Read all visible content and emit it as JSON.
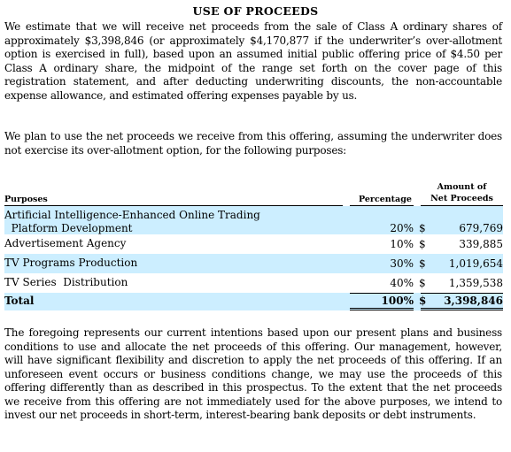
{
  "title": "USE OF PROCEEDS",
  "paragraph1": "We estimate that we will receive net proceeds from the sale of Class A ordinary shares of approximately $3,398,846 (or approximately $4,170,877 if the underwriter’s over-allotment option is exercised in full), based upon an assumed initial public offering price of $4.50 per Class A ordinary share, the midpoint of the range set forth on the cover page of this registration statement, and after deducting underwriting discounts, the non-accountable expense allowance, and estimated offering expenses payable by us.",
  "paragraph2": "We plan to use the net proceeds we receive from this offering, assuming the underwriter does not exercise its over-allotment option, for the following purposes:",
  "table": {
    "headers": {
      "purposes": "Purposes",
      "percentage": "Percentage",
      "amount_line1": "Amount of",
      "amount_line2": "Net Proceeds"
    },
    "rows": [
      {
        "purpose_line1": "Artificial Intelligence-Enhanced Online Trading",
        "purpose_line2": "  Platform Development",
        "percentage": "20%",
        "currency": "$",
        "amount": "679,769"
      },
      {
        "purpose_line1": "Advertisement Agency",
        "percentage": "10%",
        "currency": "$",
        "amount": "339,885"
      },
      {
        "purpose_line1": "TV Programs Production",
        "percentage": "30%",
        "currency": "$",
        "amount": "1,019,654"
      },
      {
        "purpose_line1": "TV Series  Distribution",
        "percentage": "40%",
        "currency": "$",
        "amount": "1,359,538"
      }
    ],
    "total": {
      "label": "Total",
      "percentage": "100%",
      "currency": "$",
      "amount": "3,398,846"
    }
  },
  "paragraph3": "The foregoing represents our current intentions based upon our present plans and business conditions to use and allocate the net proceeds of this offering. Our management, however, will have significant flexibility and discretion to apply the net proceeds of this offering. If an unforeseen event occurs or business conditions change, we may use the proceeds of this offering differently than as described in this prospectus. To the extent that the net proceeds we receive from this offering are not immediately used for the above purposes, we intend to invest our net proceeds in short-term, interest-bearing bank deposits or debt instruments.",
  "colors": {
    "row_shade": "#cceeff",
    "text": "#000000",
    "background": "#ffffff"
  }
}
